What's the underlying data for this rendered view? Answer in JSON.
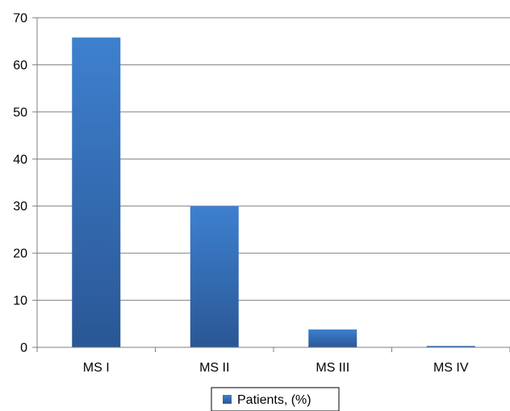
{
  "chart_data": {
    "type": "bar",
    "categories": [
      "MS I",
      "MS II",
      "MS III",
      "MS IV"
    ],
    "series": [
      {
        "name": "Patients, (%)",
        "values": [
          65.8,
          30,
          3.8,
          0.3
        ],
        "color": "#3a70b7"
      }
    ],
    "ylim": [
      0,
      70
    ],
    "yticks": [
      "0",
      "10",
      "20",
      "30",
      "40",
      "50",
      "60",
      "70"
    ],
    "grid": true,
    "legend_position": "bottom",
    "title": "",
    "xlabel": "",
    "ylabel": ""
  },
  "colors": {
    "bar_top": "#3e80cf",
    "bar_bottom": "#2a5795",
    "gridline": "#7f7f7f",
    "axis": "#7f7f7f"
  }
}
